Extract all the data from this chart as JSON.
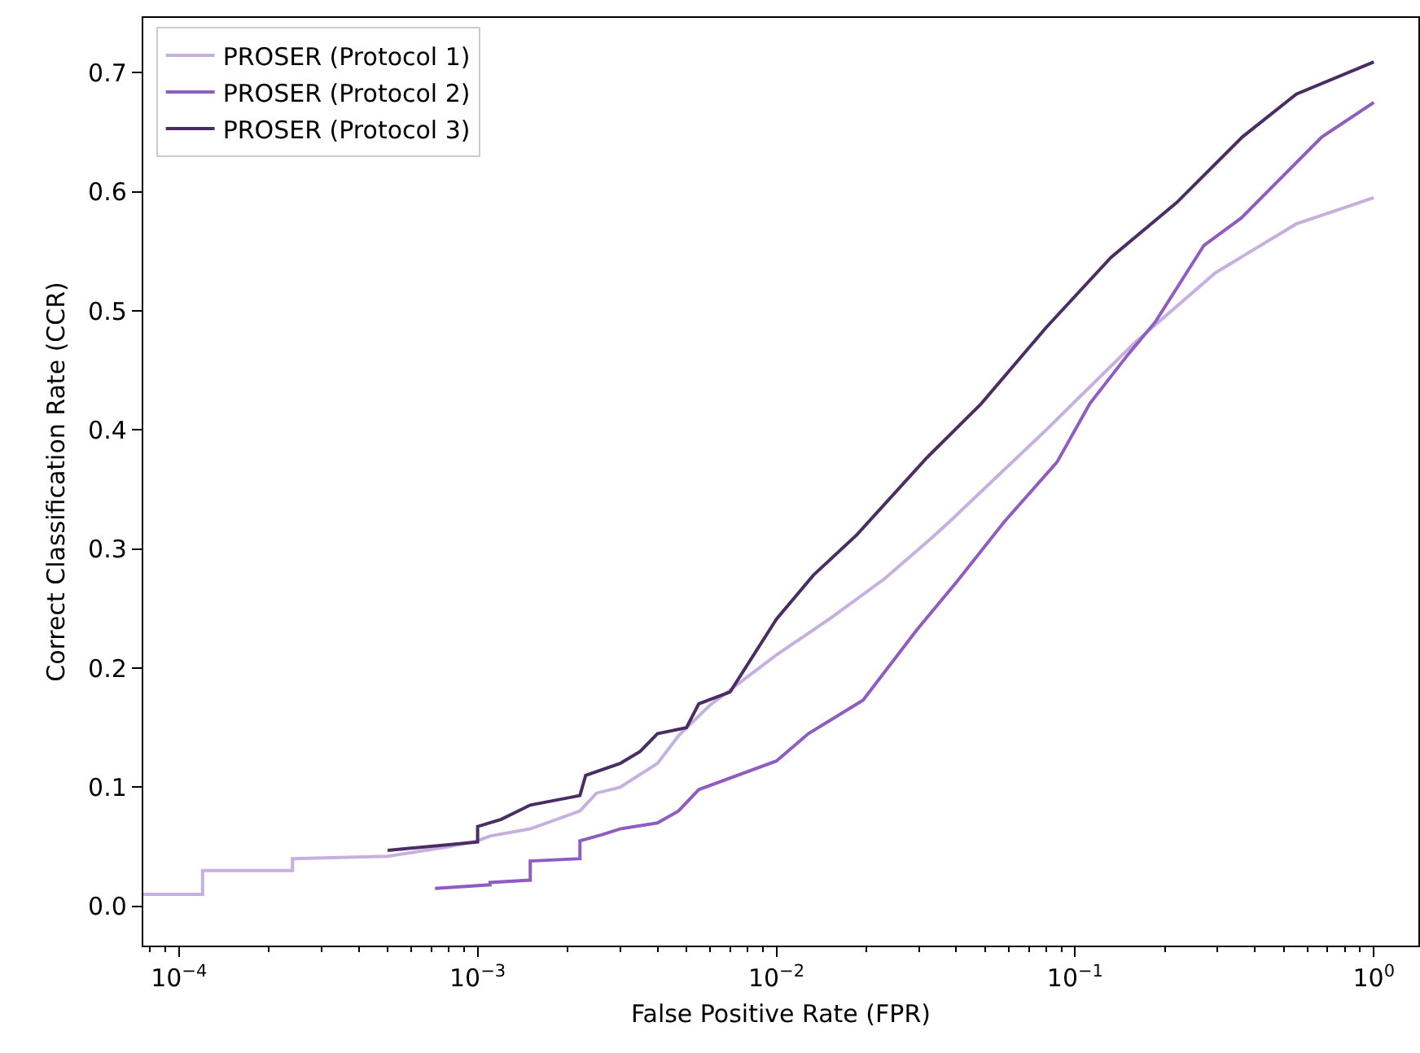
{
  "chart_data": {
    "type": "line",
    "xlabel": "False Positive Rate (FPR)",
    "ylabel": "Correct Classification Rate (CCR)",
    "log": "x",
    "grid": false,
    "legend": "top left",
    "marker": "none",
    "line_style": "solid",
    "xlim": [
      7.6e-05,
      1.41
    ],
    "ylim": [
      -0.033,
      0.746
    ],
    "xticks": [
      {
        "value": 0.0001,
        "label": "10$^{−4}$"
      },
      {
        "value": 0.001,
        "label": "10$^{−3}$"
      },
      {
        "value": 0.01,
        "label": "10$^{−2}$"
      },
      {
        "value": 0.1,
        "label": "10$^{−1}$"
      },
      {
        "value": 1,
        "label": "10$^{0}$"
      }
    ],
    "yticks": [
      {
        "value": 0,
        "label": "0.0"
      },
      0.1,
      0.2,
      0.3,
      0.4,
      0.5,
      0.6,
      0.7
    ],
    "series": [
      {
        "name": "PROSER (Protocol 1)",
        "color": "#c5b0e0",
        "x": [
          7.6e-05,
          0.00012,
          0.00012,
          0.00024,
          0.00024,
          0.0005,
          0.0008,
          0.001,
          0.0011,
          0.0015,
          0.0022,
          0.0025,
          0.003,
          0.004,
          0.0047,
          0.006,
          0.01,
          0.015,
          0.023,
          0.033,
          0.038,
          0.08,
          0.158,
          0.295,
          0.55,
          1.0
        ],
        "values": [
          0.01,
          0.01,
          0.03,
          0.03,
          0.04,
          0.042,
          0.05,
          0.055,
          0.059,
          0.065,
          0.08,
          0.095,
          0.1,
          0.12,
          0.143,
          0.169,
          0.211,
          0.241,
          0.275,
          0.309,
          0.323,
          0.4,
          0.473,
          0.532,
          0.573,
          0.595
        ]
      },
      {
        "name": "PROSER (Protocol 2)",
        "color": "#8f5cc2",
        "x": [
          0.00072,
          0.0011,
          0.0011,
          0.0015,
          0.0015,
          0.0022,
          0.0022,
          0.0026,
          0.003,
          0.004,
          0.0047,
          0.0055,
          0.01,
          0.0128,
          0.0195,
          0.0295,
          0.04,
          0.058,
          0.087,
          0.112,
          0.15,
          0.186,
          0.27,
          0.36,
          0.67,
          1.0
        ],
        "values": [
          0.015,
          0.018,
          0.02,
          0.022,
          0.038,
          0.04,
          0.055,
          0.06,
          0.065,
          0.07,
          0.08,
          0.098,
          0.122,
          0.145,
          0.173,
          0.232,
          0.272,
          0.323,
          0.373,
          0.422,
          0.463,
          0.491,
          0.555,
          0.578,
          0.646,
          0.675
        ]
      },
      {
        "name": "PROSER (Protocol 3)",
        "color": "#4a2d63",
        "x": [
          0.0005,
          0.001,
          0.001,
          0.0012,
          0.0015,
          0.0022,
          0.0023,
          0.003,
          0.0035,
          0.004,
          0.005,
          0.0055,
          0.007,
          0.01,
          0.0133,
          0.0186,
          0.032,
          0.0485,
          0.08,
          0.132,
          0.219,
          0.363,
          0.55,
          1.0
        ],
        "values": [
          0.047,
          0.054,
          0.067,
          0.073,
          0.085,
          0.093,
          0.11,
          0.12,
          0.13,
          0.145,
          0.15,
          0.17,
          0.18,
          0.241,
          0.278,
          0.312,
          0.377,
          0.422,
          0.486,
          0.545,
          0.591,
          0.646,
          0.682,
          0.709
        ]
      }
    ]
  }
}
